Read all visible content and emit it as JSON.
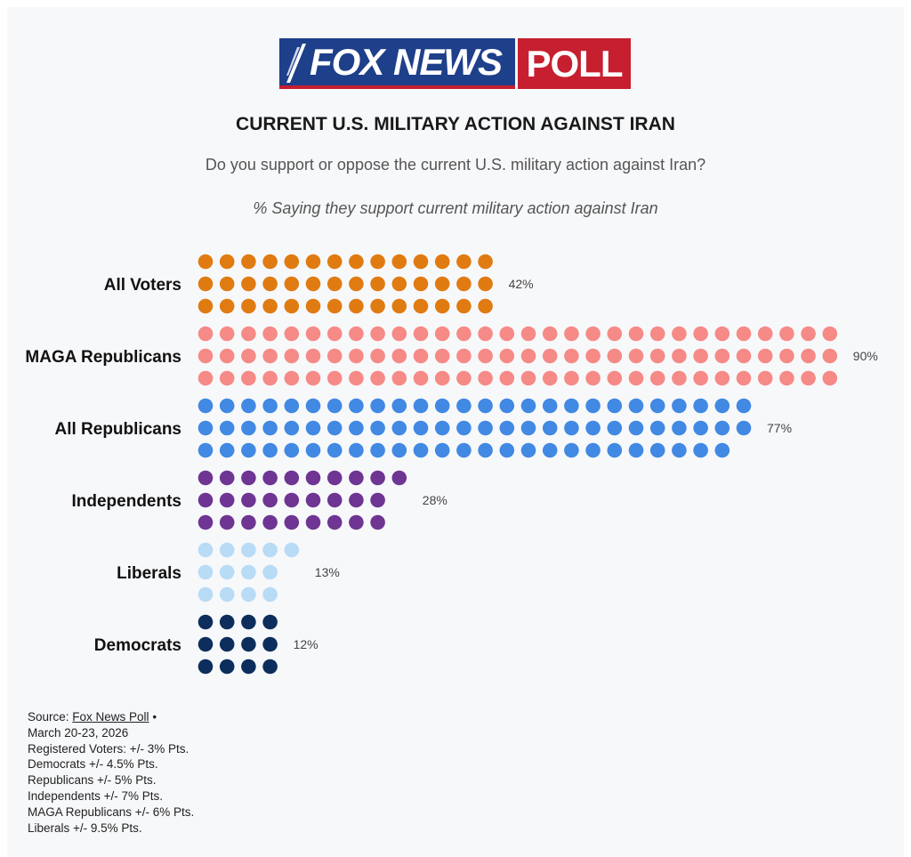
{
  "logo": {
    "brand": "FOX NEWS",
    "tag": "POLL"
  },
  "title": "CURRENT U.S. MILITARY ACTION AGAINST IRAN",
  "subtitle": "Do you support or oppose the current U.S. military action against Iran?",
  "note": "% Saying they support current military action against Iran",
  "chart_data": {
    "type": "dot-bar",
    "dots_per_row_max": 30,
    "rows_per_category": 3,
    "categories": [
      {
        "label": "All Voters",
        "value": 42,
        "value_label": "42%",
        "color": "#e07b12",
        "dots": [
          14,
          14,
          14
        ]
      },
      {
        "label": "MAGA Republicans",
        "value": 90,
        "value_label": "90%",
        "color": "#f68a86",
        "dots": [
          30,
          30,
          30
        ]
      },
      {
        "label": "All Republicans",
        "value": 77,
        "value_label": "77%",
        "color": "#4189e3",
        "dots": [
          26,
          26,
          25
        ]
      },
      {
        "label": "Independents",
        "value": 28,
        "value_label": "28%",
        "color": "#6e3593",
        "dots": [
          10,
          9,
          9
        ]
      },
      {
        "label": "Liberals",
        "value": 13,
        "value_label": "13%",
        "color": "#b8dbf6",
        "dots": [
          5,
          4,
          4
        ]
      },
      {
        "label": "Democrats",
        "value": 12,
        "value_label": "12%",
        "color": "#0d2e5c",
        "dots": [
          4,
          4,
          4
        ]
      }
    ]
  },
  "source": {
    "prefix": "Source: ",
    "link": "Fox News Poll",
    "suffix": " •",
    "lines": [
      "March 20-23, 2026",
      "Registered Voters: +/- 3% Pts.",
      "Democrats +/- 4.5% Pts.",
      "Republicans +/- 5% Pts.",
      "Independents +/- 7% Pts.",
      "MAGA Republicans +/- 6% Pts.",
      "Liberals +/- 9.5% Pts."
    ]
  }
}
